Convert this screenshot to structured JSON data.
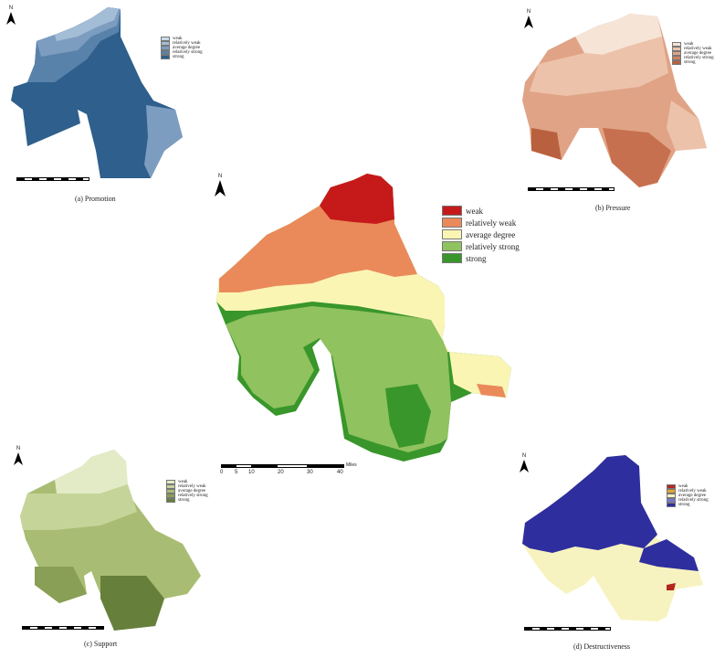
{
  "north_label": "N",
  "panels": {
    "promotion": {
      "caption": "(a) Promotion",
      "legend": [
        "weak",
        "relatively weak",
        "average degree",
        "relatively strong",
        "strong"
      ],
      "colors": [
        "#c9d9e8",
        "#a3bdd6",
        "#7d9dc0",
        "#5882aa",
        "#2f5f8c"
      ]
    },
    "pressure": {
      "caption": "(b) Pressure",
      "legend": [
        "weak",
        "relatively weak",
        "average degree",
        "relatively strong",
        "strong"
      ],
      "colors": [
        "#f6e4d6",
        "#ecc3aa",
        "#e0a386",
        "#d0805f",
        "#b9613f"
      ]
    },
    "main": {
      "legend": [
        "weak",
        "relatively weak",
        "average degree",
        "relatively strong",
        "strong"
      ],
      "colors": [
        "#c61a1a",
        "#ea8a5a",
        "#fbf5b4",
        "#90c260",
        "#39962a"
      ],
      "scale_ticks": [
        "0",
        "5",
        "10",
        "20",
        "30",
        "40"
      ],
      "scale_unit": "Miles"
    },
    "support": {
      "caption": "(c) Support",
      "legend": [
        "weak",
        "relatively weak",
        "average degree",
        "relatively strong",
        "strong"
      ],
      "colors": [
        "#e3ebc6",
        "#c5d59a",
        "#a8bd73",
        "#889f55",
        "#66803b"
      ]
    },
    "destructiveness": {
      "caption": "(d) Destructiveness",
      "legend": [
        "weak",
        "relatively weak",
        "average degree",
        "relatively strong",
        "strong"
      ],
      "colors": [
        "#b3261e",
        "#e3a62f",
        "#f7f3c0",
        "#7777d8",
        "#2e2e9e"
      ]
    }
  }
}
